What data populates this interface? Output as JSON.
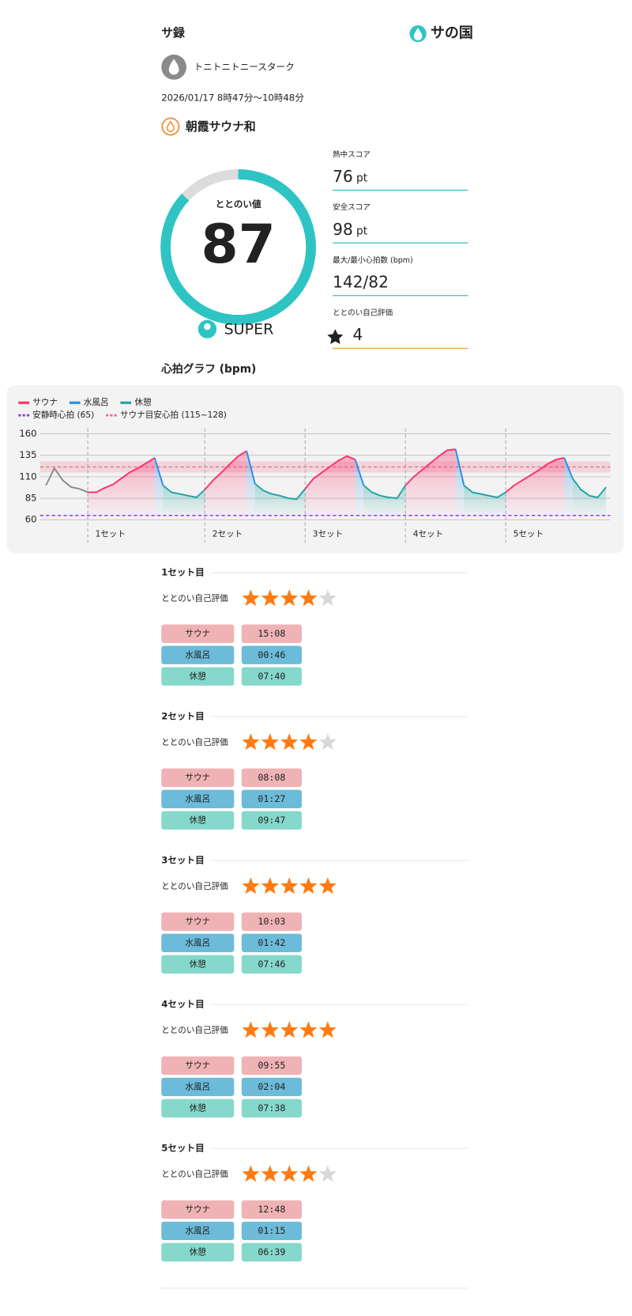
{
  "header": {
    "title": "サ録",
    "logo": "サの国"
  },
  "user": {
    "name": "トニトニトニースターク"
  },
  "datetime": "2026/01/17 8時47分〜10時48分",
  "facility": "朝霞サウナ和",
  "score": {
    "label": "ととのい値",
    "value": 87,
    "range": [
      0,
      100
    ],
    "rank": "SUPER"
  },
  "stats": [
    {
      "label": "熱中スコア",
      "value": "76",
      "unit": "pt"
    },
    {
      "label": "安全スコア",
      "value": "98",
      "unit": "pt"
    },
    {
      "label": "最大/最小心拍数 (bpm)",
      "value": "142/82"
    },
    {
      "label": "ととのい自己評価",
      "value": "4"
    }
  ],
  "heart_graph": {
    "type": "line",
    "title": "心拍グラフ (bpm)",
    "ylim": [
      53,
      166
    ],
    "yticks": [
      60,
      85,
      110,
      135,
      160
    ],
    "series": [
      {
        "color": "#8a8a8a",
        "values": [
          100,
          120,
          106,
          98,
          96,
          92,
          null,
          null,
          null,
          null,
          null,
          null,
          null,
          null,
          null,
          null,
          null,
          null,
          null,
          null,
          null,
          null,
          null,
          null,
          null,
          null,
          null,
          null,
          null,
          null,
          null,
          null,
          null,
          null,
          null,
          null,
          null,
          null,
          null,
          null,
          null,
          null,
          null,
          null,
          null,
          null,
          null,
          null,
          null,
          null,
          null,
          null,
          null,
          null,
          null,
          null,
          null,
          null,
          null,
          null,
          null,
          null,
          null,
          null,
          null,
          null,
          null,
          null
        ]
      },
      {
        "name": "サウナ",
        "color": "#ff2d6b",
        "values": [
          null,
          null,
          null,
          null,
          null,
          92,
          92,
          97,
          101,
          108,
          115,
          120,
          126,
          132,
          null,
          null,
          null,
          null,
          null,
          95,
          106,
          115,
          125,
          134,
          140,
          null,
          null,
          null,
          null,
          null,
          null,
          96,
          108,
          115,
          122,
          129,
          134,
          130,
          null,
          null,
          null,
          null,
          null,
          100,
          110,
          118,
          126,
          134,
          141,
          142,
          null,
          null,
          null,
          null,
          null,
          92,
          100,
          106,
          112,
          118,
          125,
          130,
          132,
          null,
          null,
          null,
          null,
          null
        ]
      },
      {
        "name": "水風呂",
        "color": "#2b8be8",
        "values": [
          null,
          null,
          null,
          null,
          null,
          null,
          null,
          null,
          null,
          null,
          null,
          null,
          null,
          132,
          100,
          null,
          null,
          null,
          null,
          null,
          null,
          null,
          null,
          null,
          140,
          102,
          null,
          null,
          null,
          null,
          null,
          null,
          null,
          null,
          null,
          null,
          null,
          130,
          100,
          null,
          null,
          null,
          null,
          null,
          null,
          null,
          null,
          null,
          null,
          142,
          100,
          null,
          null,
          null,
          null,
          null,
          null,
          null,
          null,
          null,
          null,
          null,
          132,
          108,
          null,
          null,
          null,
          null
        ]
      },
      {
        "name": "休憩",
        "color": "#1fa3a0",
        "values": [
          null,
          null,
          null,
          null,
          null,
          null,
          null,
          null,
          null,
          null,
          null,
          null,
          null,
          null,
          100,
          92,
          90,
          88,
          86,
          95,
          null,
          null,
          null,
          null,
          null,
          102,
          94,
          90,
          88,
          85,
          84,
          96,
          null,
          null,
          null,
          null,
          null,
          null,
          100,
          92,
          88,
          86,
          85,
          100,
          null,
          null,
          null,
          null,
          null,
          null,
          100,
          92,
          90,
          88,
          86,
          92,
          null,
          null,
          null,
          null,
          null,
          null,
          null,
          108,
          95,
          88,
          86,
          98
        ]
      }
    ],
    "resting": {
      "label": "安静時心拍 (65)",
      "value": 65,
      "color": "#9b30ff"
    },
    "target": {
      "label": "サウナ目安心拍 (115~128)",
      "range": [
        115,
        128
      ],
      "color": "#f06a8a"
    },
    "set_labels": [
      "1セット",
      "2セット",
      "3セット",
      "4セット",
      "5セット"
    ]
  },
  "max_rating": 5,
  "sets": [
    {
      "title": "1セット目",
      "rating_label": "ととのい自己評価",
      "rating": 4,
      "rows": [
        {
          "label": "サウナ",
          "time": "15:08"
        },
        {
          "label": "水風呂",
          "time": "00:46"
        },
        {
          "label": "休憩",
          "time": "07:40"
        }
      ]
    },
    {
      "title": "2セット目",
      "rating_label": "ととのい自己評価",
      "rating": 4,
      "rows": [
        {
          "label": "サウナ",
          "time": "08:08"
        },
        {
          "label": "水風呂",
          "time": "01:27"
        },
        {
          "label": "休憩",
          "time": "09:47"
        }
      ]
    },
    {
      "title": "3セット目",
      "rating_label": "ととのい自己評価",
      "rating": 5,
      "rows": [
        {
          "label": "サウナ",
          "time": "10:03"
        },
        {
          "label": "水風呂",
          "time": "01:42"
        },
        {
          "label": "休憩",
          "time": "07:46"
        }
      ]
    },
    {
      "title": "4セット目",
      "rating_label": "ととのい自己評価",
      "rating": 5,
      "rows": [
        {
          "label": "サウナ",
          "time": "09:55"
        },
        {
          "label": "水風呂",
          "time": "02:04"
        },
        {
          "label": "休憩",
          "time": "07:38"
        }
      ]
    },
    {
      "title": "5セット目",
      "rating_label": "ととのい自己評価",
      "rating": 4,
      "rows": [
        {
          "label": "サウナ",
          "time": "12:48"
        },
        {
          "label": "水風呂",
          "time": "01:15"
        },
        {
          "label": "休憩",
          "time": "06:39"
        }
      ]
    }
  ]
}
